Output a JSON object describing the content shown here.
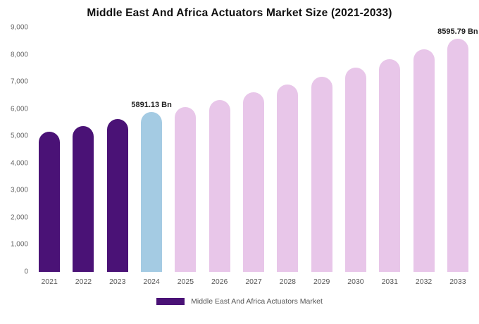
{
  "chart_data": {
    "type": "bar",
    "title": "Middle East And Africa Actuators Market Size (2021-2033)",
    "categories": [
      "2021",
      "2022",
      "2023",
      "2024",
      "2025",
      "2026",
      "2027",
      "2028",
      "2029",
      "2030",
      "2031",
      "2032",
      "2033"
    ],
    "values": [
      5150,
      5380,
      5620,
      5891.13,
      6070,
      6330,
      6610,
      6900,
      7180,
      7520,
      7830,
      8190,
      8595.79
    ],
    "bar_colors": [
      "#4a1276",
      "#4a1276",
      "#4a1276",
      "#a4cbe3",
      "#e8c6e9",
      "#e8c6e9",
      "#e8c6e9",
      "#e8c6e9",
      "#e8c6e9",
      "#e8c6e9",
      "#e8c6e9",
      "#e8c6e9",
      "#e8c6e9"
    ],
    "point_labels": {
      "2024": "5891.13 Bn",
      "2033": "8595.79 Bn"
    },
    "xlabel": "",
    "ylabel": "",
    "ylim": [
      0,
      9000
    ],
    "yticks": [
      "0",
      "1,000",
      "2,000",
      "3,000",
      "4,000",
      "5,000",
      "6,000",
      "7,000",
      "8,000",
      "9,000"
    ],
    "grid": false,
    "legend": {
      "position": "bottom",
      "label": "Middle East And Africa Actuators Market",
      "color": "#4a1276"
    }
  }
}
